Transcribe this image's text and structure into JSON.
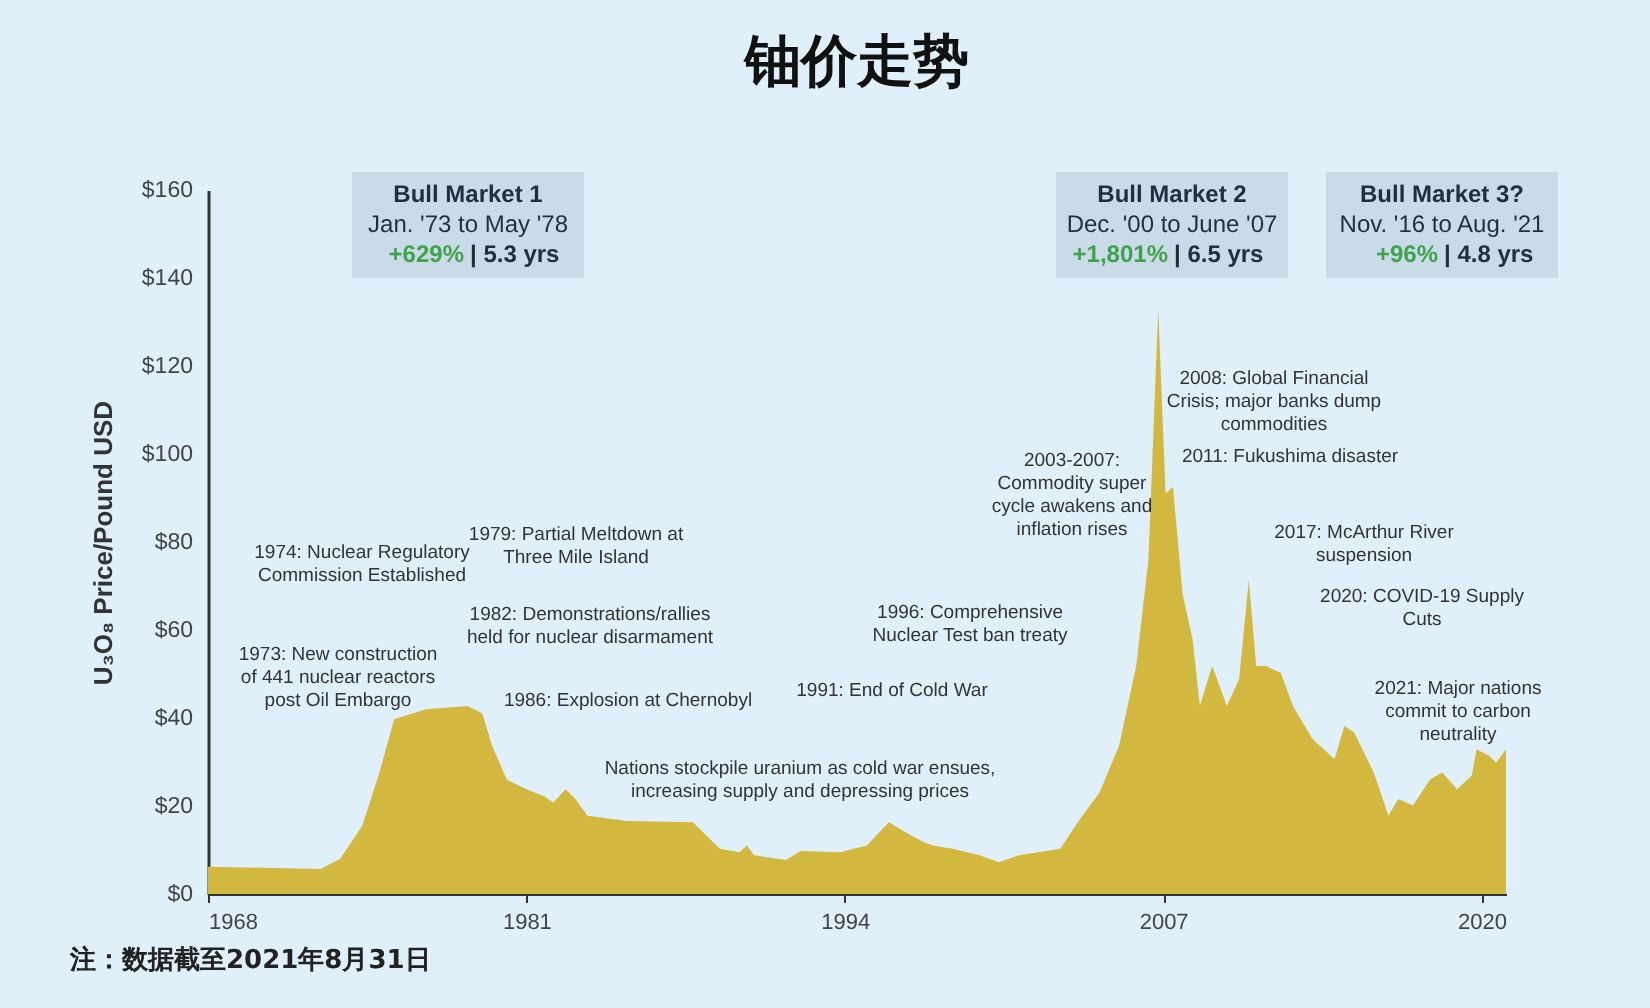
{
  "chart_data": {
    "type": "area",
    "title": "铀价走势",
    "ylabel": "U₃O₈ Price/Pound USD",
    "x": [
      1968.0,
      1972.6,
      1973.4,
      1974.3,
      1975.0,
      1975.6,
      1976.9,
      1978.6,
      1979.2,
      1979.6,
      1980.2,
      1981.0,
      1981.7,
      1982.1,
      1982.6,
      1983.0,
      1983.5,
      1985.1,
      1987.8,
      1988.9,
      1989.7,
      1990.0,
      1990.3,
      1991.6,
      1992.2,
      1993.8,
      1994.9,
      1995.8,
      1996.5,
      1997.2,
      1997.6,
      1998.4,
      1999.5,
      2000.3,
      2001.1,
      2002.8,
      2003.6,
      2004.4,
      2005.2,
      2005.9,
      2006.4,
      2006.8,
      2007.1,
      2007.4,
      2007.8,
      2008.2,
      2008.5,
      2009.0,
      2009.6,
      2010.1,
      2010.5,
      2010.8,
      2011.2,
      2011.8,
      2012.3,
      2013.1,
      2014.0,
      2014.4,
      2014.8,
      2015.6,
      2016.2,
      2016.6,
      2017.2,
      2017.9,
      2018.4,
      2019.0,
      2019.6,
      2019.8,
      2020.3,
      2020.6,
      2021.0
    ],
    "series": [
      {
        "color": "#d3b840",
        "values": [
          6.2,
          5.7,
          8,
          15.5,
          27.6,
          39.7,
          42,
          42.7,
          41,
          33.7,
          26,
          23.8,
          22.3,
          20.8,
          23.8,
          21.6,
          17.8,
          16.6,
          16.3,
          10.3,
          9.5,
          11,
          8.8,
          7.7,
          9.8,
          9.5,
          11,
          16.3,
          14,
          11.8,
          11,
          10.3,
          8.8,
          7.2,
          8.8,
          10.3,
          17,
          23,
          33.7,
          51.8,
          76,
          133,
          91,
          92.5,
          68,
          58,
          42.7,
          51.8,
          42.7,
          48.8,
          71.4,
          51.8,
          51.8,
          50.3,
          42.7,
          35.2,
          30.6,
          38.2,
          36.7,
          27.6,
          17.8,
          21.6,
          20.1,
          26,
          27.6,
          23.8,
          26.9,
          32.9,
          31.4,
          29.9,
          32.9
        ]
      }
    ],
    "xlim": [
      1968,
      2021
    ],
    "xticks": [
      1968,
      1981,
      1994,
      2007,
      2020
    ],
    "ylim": [
      0,
      160
    ],
    "yticks": [
      {
        "value": 0,
        "label": "$0"
      },
      {
        "value": 20,
        "label": "$20"
      },
      {
        "value": 40,
        "label": "$40"
      },
      {
        "value": 60,
        "label": "$60"
      },
      {
        "value": 80,
        "label": "$80"
      },
      {
        "value": 100,
        "label": "$100"
      },
      {
        "value": 120,
        "label": "$120"
      },
      {
        "value": 140,
        "label": "$140"
      },
      {
        "value": 160,
        "label": "$160"
      }
    ],
    "annotations": [
      "Bull Market 1\nJan. '73 to May '78\n+629% | 5.3 yrs",
      "Bull Market 2\nDec. '00 to June '07\n+1,801% | 6.5 yrs",
      "Bull Market 3?\nNov. '16 to Aug. '21\n+96% | 4.8 yrs",
      "1973: New construction\nof 441 nuclear reactors\npost Oil Embargo",
      "1974: Nuclear Regulatory\nCommission Established",
      "1979: Partial Meltdown at\nThree Mile Island",
      "1982: Demonstrations/rallies\nheld for nuclear disarmament",
      "1986: Explosion at Chernobyl",
      "Nations stockpile uranium as cold war ensues,\nincreasing supply and depressing prices",
      "1991: End of Cold War",
      "1996: Comprehensive\nNuclear Test ban treaty",
      "2003-2007:\nCommodity super\ncycle awakens and\ninflation rises",
      "2008: Global Financial\nCrisis; major banks dump\ncommodities",
      "2011: Fukushima disaster",
      "2017: McArthur River\nsuspension",
      "2020: COVID-19 Supply\nCuts",
      "2021: Major nations\ncommit to carbon\nneutrality",
      "注：数据截至2021年8月31日"
    ]
  }
}
